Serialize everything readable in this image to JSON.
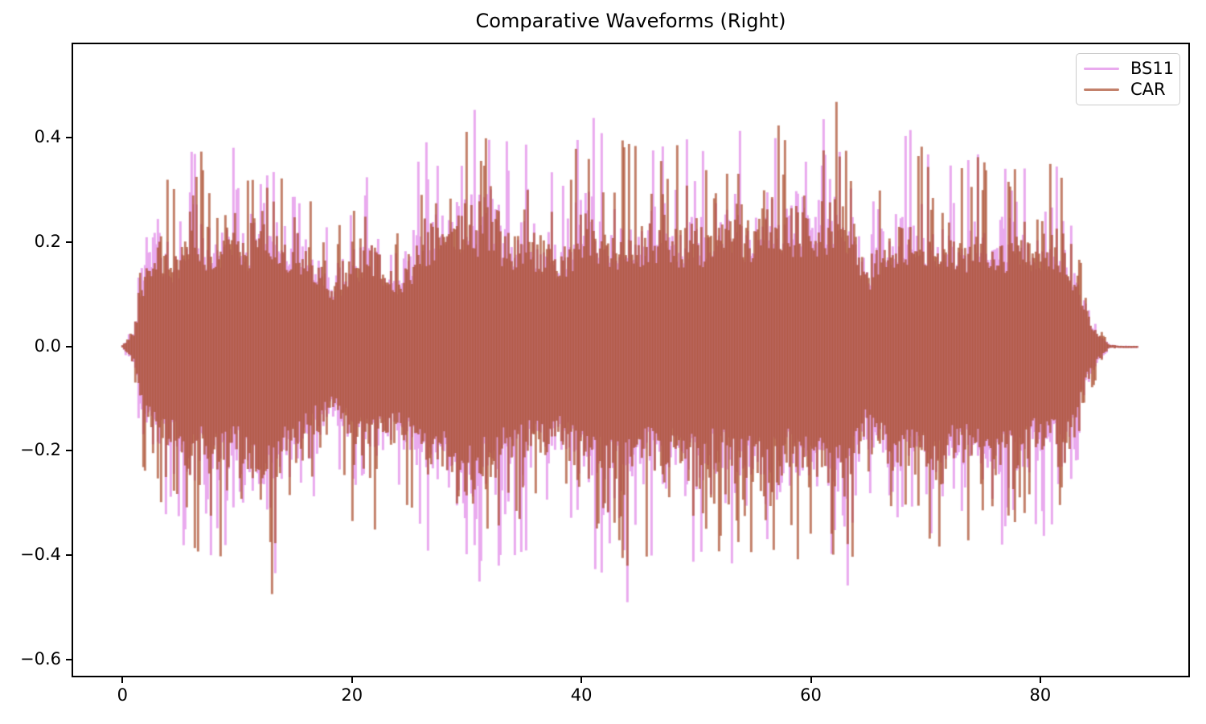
{
  "title": "Comparative Waveforms (Right)",
  "legend": {
    "entries": [
      {
        "label": "BS11",
        "color": "#e9aaee"
      },
      {
        "label": "CAR",
        "color": "#c3816b"
      }
    ]
  },
  "axes": {
    "xlim": [
      -4.3,
      92.9
    ],
    "ylim": [
      -0.631,
      0.579
    ],
    "x_ticks": [
      {
        "value": 0,
        "label": "0"
      },
      {
        "value": 20,
        "label": "20"
      },
      {
        "value": 40,
        "label": "40"
      },
      {
        "value": 60,
        "label": "60"
      },
      {
        "value": 80,
        "label": "80"
      }
    ],
    "y_ticks": [
      {
        "value": 0.4,
        "label": "0.4"
      },
      {
        "value": 0.2,
        "label": "0.2"
      },
      {
        "value": 0.0,
        "label": "0.0"
      },
      {
        "value": -0.2,
        "label": "−0.2"
      },
      {
        "value": -0.4,
        "label": "−0.4"
      },
      {
        "value": -0.6,
        "label": "−0.6"
      }
    ]
  },
  "style": {
    "background": "#ffffff",
    "spine_color": "#000000",
    "tick_color": "#000000",
    "legend_border": "#cccccc",
    "overlap_color": "#bd6a6e"
  },
  "chart_data": {
    "type": "line",
    "subtype": "audio_waveform_envelope",
    "title": "Comparative Waveforms (Right)",
    "xlabel": "",
    "ylabel": "",
    "xlim": [
      -4.3,
      92.9
    ],
    "ylim": [
      -0.631,
      0.579
    ],
    "grid": false,
    "legend_position": "upper right",
    "x_start": 0,
    "x_end": 88.5,
    "envelope_t_step": 1,
    "global_max": 0.53,
    "global_min": -0.57,
    "series": [
      {
        "name": "BS11",
        "rendered_color": "#e9aaee",
        "fill_style": "#e9aaee",
        "pos": [
          0.004,
          0.05,
          0.33,
          0.39,
          0.3,
          0.32,
          0.47,
          0.4,
          0.35,
          0.42,
          0.46,
          0.35,
          0.46,
          0.53,
          0.38,
          0.39,
          0.36,
          0.28,
          0.24,
          0.25,
          0.3,
          0.33,
          0.35,
          0.28,
          0.26,
          0.33,
          0.39,
          0.44,
          0.5,
          0.46,
          0.48,
          0.5,
          0.53,
          0.42,
          0.4,
          0.42,
          0.38,
          0.35,
          0.33,
          0.36,
          0.48,
          0.46,
          0.42,
          0.4,
          0.44,
          0.42,
          0.4,
          0.48,
          0.44,
          0.4,
          0.44,
          0.4,
          0.42,
          0.46,
          0.42,
          0.4,
          0.44,
          0.46,
          0.44,
          0.48,
          0.52,
          0.5,
          0.46,
          0.48,
          0.34,
          0.3,
          0.32,
          0.4,
          0.42,
          0.44,
          0.4,
          0.38,
          0.4,
          0.36,
          0.38,
          0.42,
          0.4,
          0.38,
          0.4,
          0.36,
          0.33,
          0.35,
          0.38,
          0.26,
          0.13,
          0.05,
          0.006,
          0.002,
          0.002,
          0.002,
          0.002
        ],
        "neg": [
          0.004,
          0.06,
          0.3,
          0.35,
          0.33,
          0.38,
          0.44,
          0.36,
          0.42,
          0.4,
          0.38,
          0.44,
          0.5,
          0.55,
          0.4,
          0.38,
          0.35,
          0.3,
          0.26,
          0.28,
          0.34,
          0.36,
          0.38,
          0.32,
          0.3,
          0.36,
          0.42,
          0.46,
          0.44,
          0.46,
          0.57,
          0.52,
          0.46,
          0.42,
          0.44,
          0.4,
          0.38,
          0.4,
          0.36,
          0.38,
          0.44,
          0.46,
          0.44,
          0.46,
          0.52,
          0.44,
          0.42,
          0.44,
          0.4,
          0.42,
          0.46,
          0.44,
          0.42,
          0.44,
          0.46,
          0.42,
          0.44,
          0.46,
          0.42,
          0.44,
          0.5,
          0.46,
          0.56,
          0.5,
          0.38,
          0.32,
          0.34,
          0.45,
          0.42,
          0.4,
          0.42,
          0.44,
          0.42,
          0.4,
          0.42,
          0.47,
          0.44,
          0.4,
          0.42,
          0.38,
          0.36,
          0.38,
          0.4,
          0.3,
          0.14,
          0.06,
          0.006,
          0.002,
          0.002,
          0.002,
          0.002
        ]
      },
      {
        "name": "CAR",
        "rendered_color": "#c3816b",
        "fill_style": "rgba(172,80,50,0.72)",
        "pos": [
          0.004,
          0.05,
          0.28,
          0.35,
          0.32,
          0.38,
          0.42,
          0.38,
          0.34,
          0.45,
          0.42,
          0.33,
          0.47,
          0.44,
          0.36,
          0.37,
          0.34,
          0.26,
          0.22,
          0.24,
          0.32,
          0.38,
          0.34,
          0.3,
          0.24,
          0.3,
          0.36,
          0.42,
          0.47,
          0.5,
          0.46,
          0.44,
          0.48,
          0.4,
          0.38,
          0.4,
          0.36,
          0.33,
          0.35,
          0.34,
          0.44,
          0.42,
          0.4,
          0.38,
          0.42,
          0.4,
          0.38,
          0.42,
          0.4,
          0.38,
          0.42,
          0.38,
          0.4,
          0.5,
          0.44,
          0.42,
          0.4,
          0.44,
          0.42,
          0.44,
          0.46,
          0.44,
          0.48,
          0.51,
          0.32,
          0.28,
          0.3,
          0.38,
          0.4,
          0.42,
          0.38,
          0.42,
          0.38,
          0.34,
          0.36,
          0.4,
          0.38,
          0.36,
          0.38,
          0.4,
          0.34,
          0.36,
          0.36,
          0.24,
          0.12,
          0.05,
          0.006,
          0.002,
          0.002,
          0.002,
          0.002
        ],
        "neg": [
          0.004,
          0.05,
          0.28,
          0.33,
          0.35,
          0.4,
          0.5,
          0.38,
          0.44,
          0.42,
          0.36,
          0.46,
          0.51,
          0.48,
          0.38,
          0.36,
          0.33,
          0.28,
          0.24,
          0.26,
          0.36,
          0.38,
          0.36,
          0.34,
          0.28,
          0.34,
          0.4,
          0.44,
          0.42,
          0.48,
          0.5,
          0.46,
          0.44,
          0.4,
          0.42,
          0.38,
          0.36,
          0.38,
          0.34,
          0.36,
          0.42,
          0.44,
          0.5,
          0.44,
          0.46,
          0.42,
          0.4,
          0.42,
          0.38,
          0.4,
          0.44,
          0.42,
          0.4,
          0.42,
          0.44,
          0.4,
          0.52,
          0.44,
          0.4,
          0.42,
          0.46,
          0.44,
          0.51,
          0.48,
          0.36,
          0.3,
          0.32,
          0.4,
          0.4,
          0.38,
          0.4,
          0.45,
          0.4,
          0.38,
          0.4,
          0.42,
          0.4,
          0.38,
          0.4,
          0.36,
          0.34,
          0.36,
          0.38,
          0.32,
          0.13,
          0.05,
          0.006,
          0.002,
          0.002,
          0.002,
          0.002
        ]
      }
    ]
  }
}
